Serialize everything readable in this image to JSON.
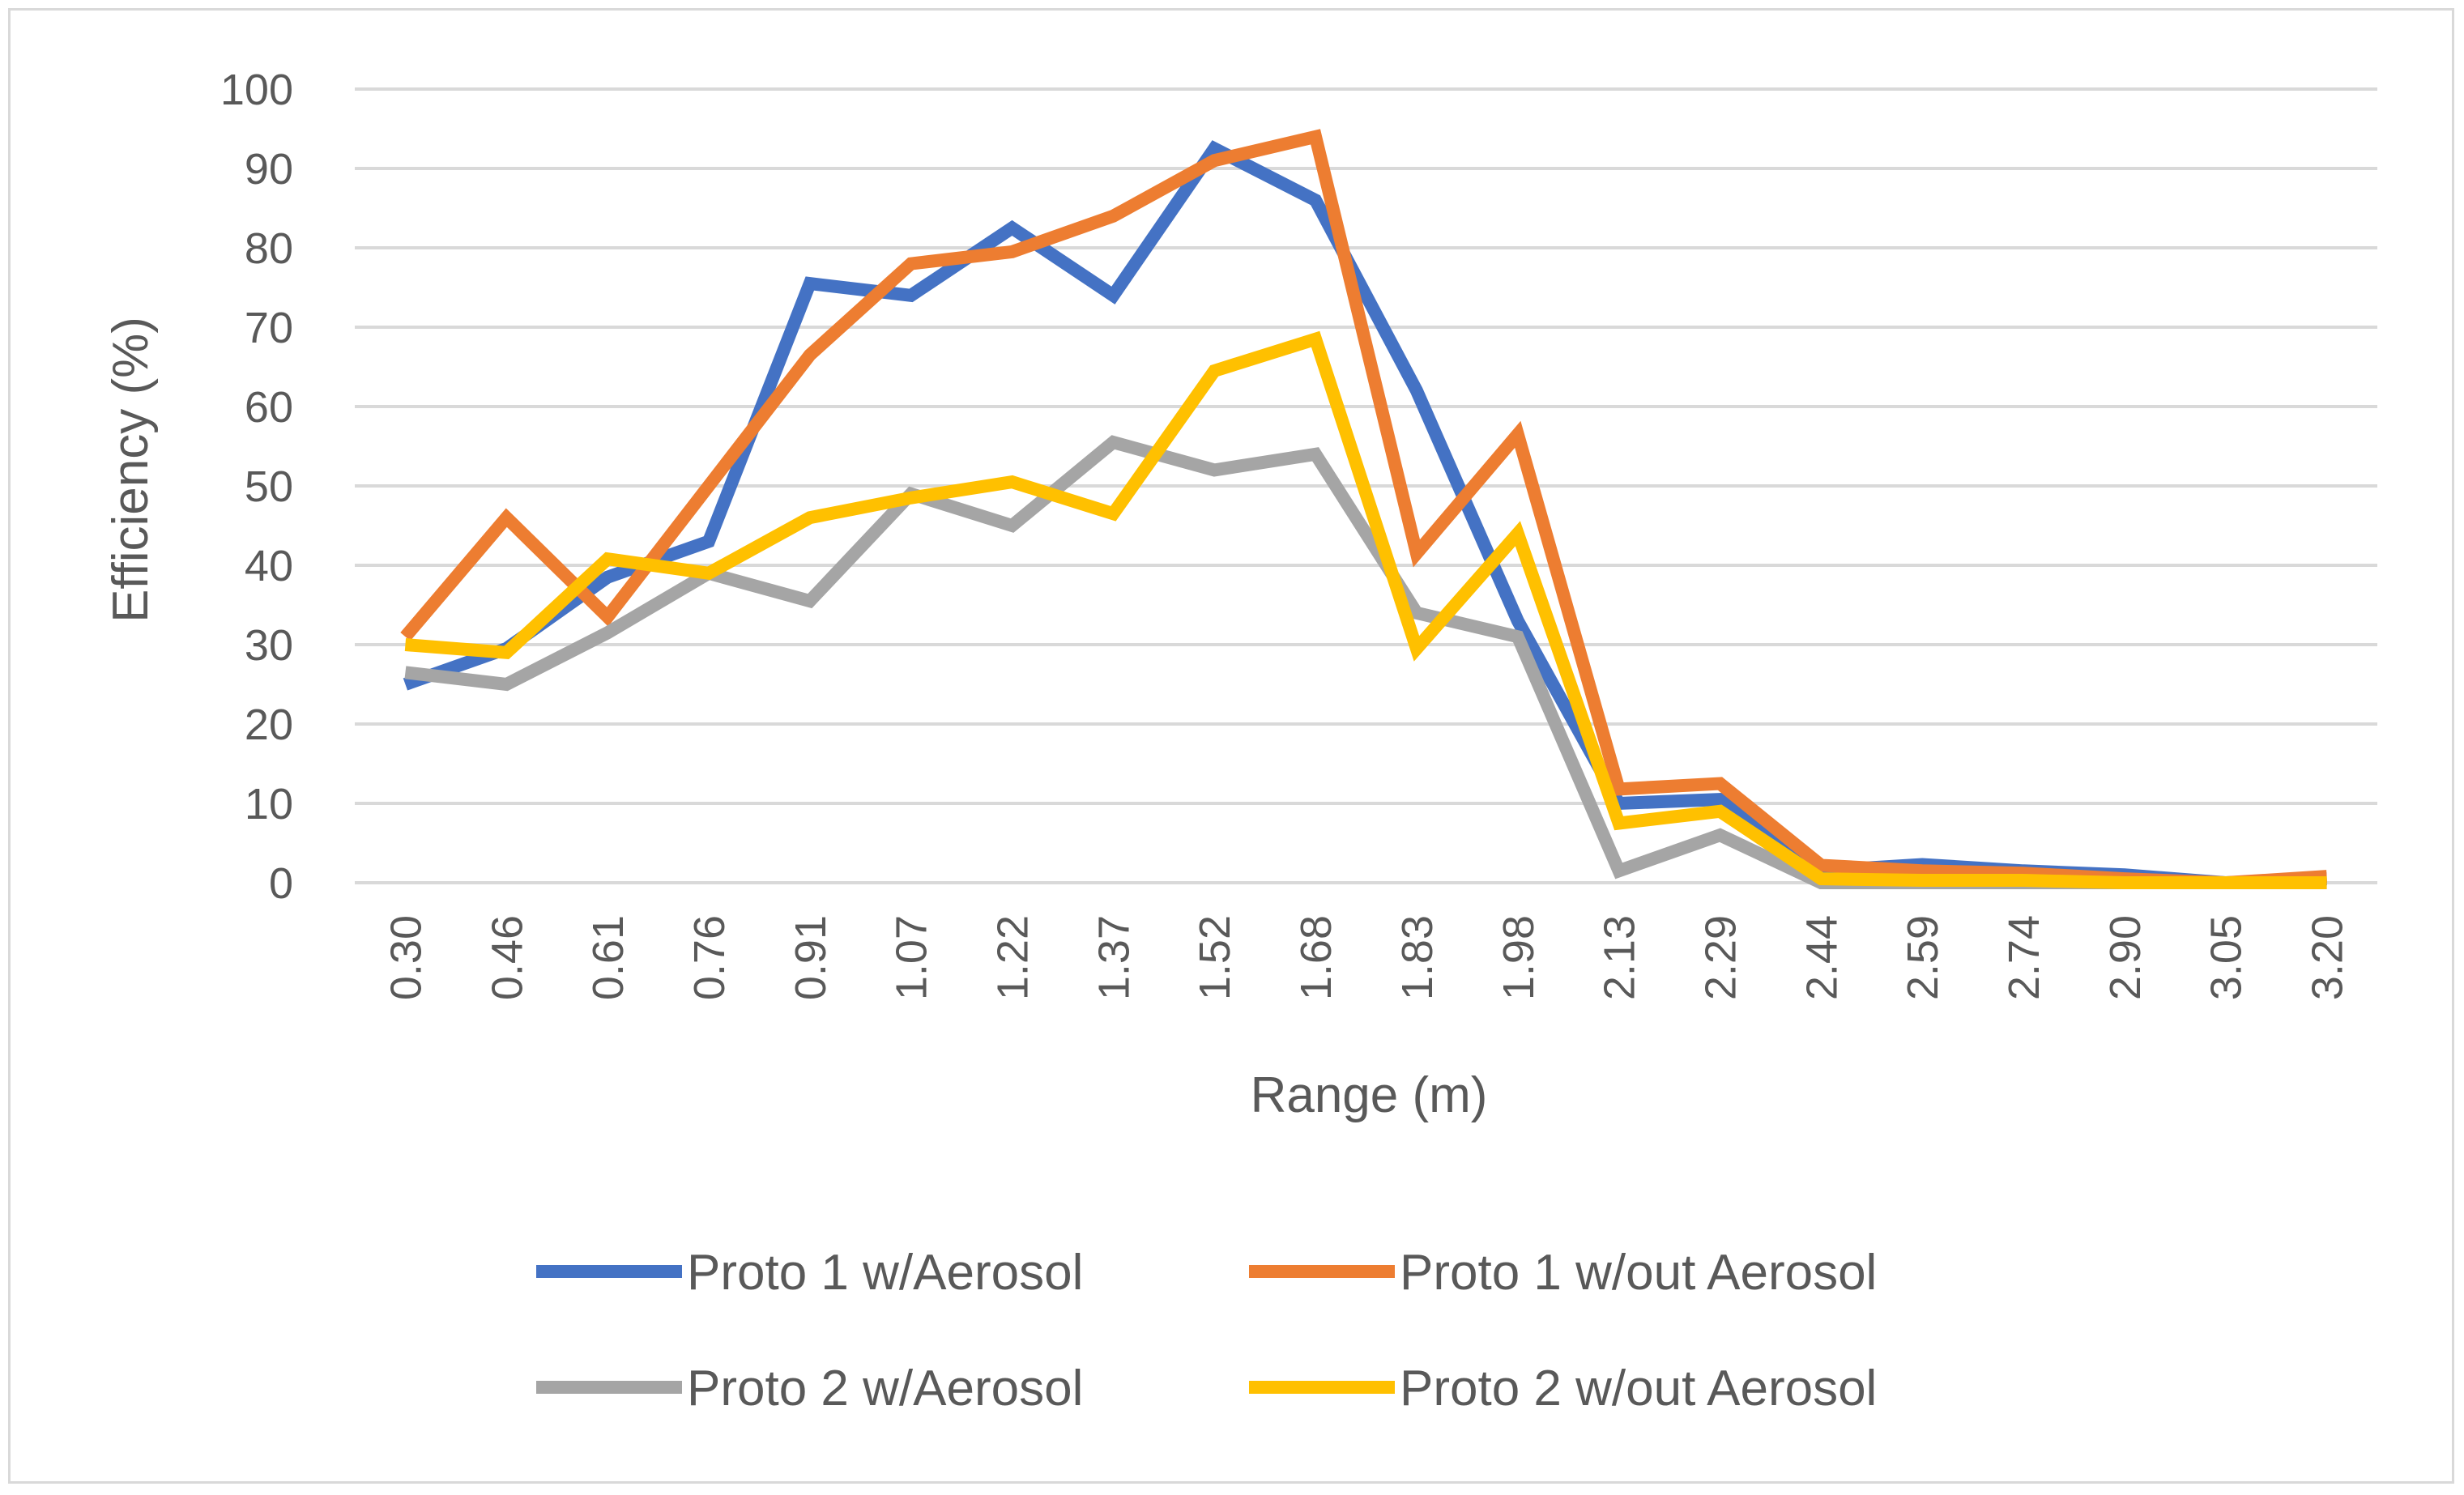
{
  "chart_data": {
    "type": "line",
    "title": "",
    "xlabel": "Range (m)",
    "ylabel": "Efficiency (%)",
    "ylim": [
      0,
      100
    ],
    "yticks": [
      "0",
      "10",
      "20",
      "30",
      "40",
      "50",
      "60",
      "70",
      "80",
      "90",
      "100"
    ],
    "categories": [
      "0.30",
      "0.46",
      "0.61",
      "0.76",
      "0.91",
      "1.07",
      "1.22",
      "1.37",
      "1.52",
      "1.68",
      "1.83",
      "1.98",
      "2.13",
      "2.29",
      "2.44",
      "2.59",
      "2.74",
      "2.90",
      "3.05",
      "3.20"
    ],
    "grid": true,
    "legend_position": "bottom",
    "series": [
      {
        "name": "Proto 1 w/Aerosol",
        "color": "#4472c4",
        "values": [
          25,
          29.5,
          38.5,
          43,
          75.5,
          74,
          82.5,
          74,
          92.5,
          86,
          62,
          33,
          10,
          10.5,
          1.5,
          2.3,
          1.5,
          1,
          0,
          0.5
        ]
      },
      {
        "name": "Proto 1 w/out Aerosol",
        "color": "#ed7d31",
        "values": [
          31,
          46,
          33.5,
          50,
          66.5,
          78,
          79.5,
          84,
          91,
          94,
          41.5,
          56.5,
          11.8,
          12.5,
          2.2,
          1.5,
          1.2,
          0.5,
          0,
          0.8
        ]
      },
      {
        "name": "Proto 2 w/Aerosol",
        "color": "#a5a5a5",
        "values": [
          26.5,
          25,
          31.5,
          39,
          35.5,
          49,
          45,
          55.5,
          52,
          54,
          34,
          31,
          1.5,
          6,
          0,
          0,
          0,
          0,
          0,
          0
        ]
      },
      {
        "name": "Proto 2 w/out Aerosol",
        "color": "#ffc000",
        "values": [
          30,
          29,
          40.8,
          39,
          46,
          48.5,
          50.5,
          46.5,
          64.5,
          68.5,
          29.5,
          44,
          7.5,
          9,
          0.5,
          0.3,
          0.3,
          0,
          0,
          0
        ]
      }
    ]
  }
}
